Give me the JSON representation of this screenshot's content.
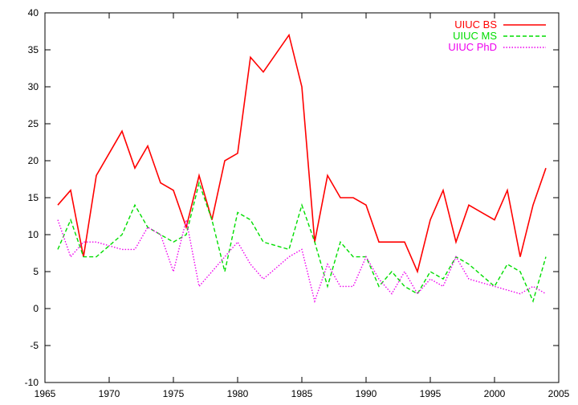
{
  "chart_data": {
    "type": "line",
    "title": "",
    "xlabel": "",
    "ylabel": "",
    "xlim": [
      1965,
      2005
    ],
    "ylim": [
      -10,
      40
    ],
    "x_ticks": [
      1965,
      1970,
      1975,
      1980,
      1985,
      1990,
      1995,
      2000,
      2005
    ],
    "y_ticks": [
      -10,
      -5,
      0,
      5,
      10,
      15,
      20,
      25,
      30,
      35,
      40
    ],
    "grid": false,
    "legend_position": "top-right",
    "x": [
      1966,
      1967,
      1968,
      1969,
      1970,
      1971,
      1972,
      1973,
      1974,
      1975,
      1976,
      1977,
      1978,
      1979,
      1980,
      1981,
      1982,
      1983,
      1984,
      1985,
      1986,
      1987,
      1988,
      1989,
      1990,
      1991,
      1992,
      1993,
      1994,
      1995,
      1996,
      1997,
      1998,
      1999,
      2000,
      2001,
      2002,
      2003,
      2004
    ],
    "series": [
      {
        "name": "UIUC BS",
        "color": "#ff0000",
        "dash": "solid",
        "values": [
          14,
          16,
          7,
          18,
          21,
          24,
          19,
          22,
          17,
          16,
          11,
          18,
          12,
          20,
          21,
          34,
          32,
          34.5,
          37,
          30,
          9,
          18,
          15,
          15,
          14,
          9,
          9,
          9,
          5,
          12,
          16,
          9,
          14,
          13,
          12,
          16,
          7,
          14,
          19
        ]
      },
      {
        "name": "UIUC MS",
        "color": "#00dd00",
        "dash": "dashed",
        "values": [
          8,
          12,
          7,
          7,
          8.5,
          10,
          14,
          11,
          10,
          9,
          10,
          17,
          12,
          5,
          13,
          12,
          9,
          8.5,
          8,
          14,
          9,
          3,
          9,
          7,
          7,
          3,
          5,
          3,
          2,
          5,
          4,
          7,
          6,
          4.5,
          3,
          6,
          5,
          1,
          7
        ]
      },
      {
        "name": "UIUC PhD",
        "color": "#ee00ee",
        "dash": "dotted",
        "values": [
          12,
          7,
          9,
          9,
          8.5,
          8,
          8,
          11,
          10,
          5,
          12,
          3,
          5,
          7,
          9,
          6,
          4,
          5.5,
          7,
          8,
          1,
          6,
          3,
          3,
          7,
          4,
          2,
          5,
          2,
          4,
          3,
          7,
          4,
          3.5,
          3,
          2.5,
          2,
          3,
          2
        ]
      }
    ]
  }
}
